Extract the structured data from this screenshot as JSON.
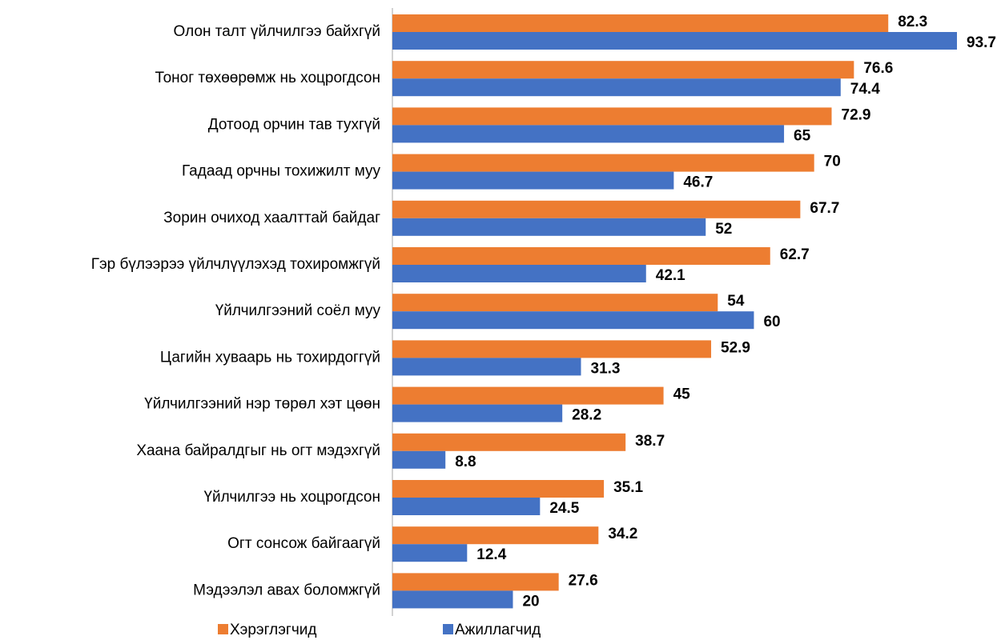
{
  "chart_data": {
    "type": "hbar",
    "categories": [
      "Олон талт үйлчилгээ байхгүй",
      "Тоног төхөөрөмж нь хоцрогдсон",
      "Дотоод орчин тав тухгүй",
      "Гадаад орчны тохижилт муу",
      "Зорин очиход хаалттай байдаг",
      "Гэр бүлээрээ үйлчлүүлэхэд тохиромжгүй",
      "Үйлчилгээний соёл муу",
      "Цагийн хуваарь нь тохирдоггүй",
      "Үйлчилгээний нэр төрөл хэт цөөн",
      "Хаана байралдгыг нь огт мэдэхгүй",
      "Үйлчилгээ нь хоцрогдсон",
      "Огт сонсож байгаагүй",
      "Мэдээлэл авах боломжгүй"
    ],
    "series": [
      {
        "name": "Хэрэглэгчид",
        "color": "#ED7D31",
        "values": [
          82.3,
          76.6,
          72.9,
          70,
          67.7,
          62.7,
          54,
          52.9,
          45,
          38.7,
          35.1,
          34.2,
          27.6
        ]
      },
      {
        "name": "Ажиллагчид",
        "color": "#4472C4",
        "values": [
          93.7,
          74.4,
          65,
          46.7,
          52,
          42.1,
          60,
          31.3,
          28.2,
          8.8,
          24.5,
          12.4,
          20
        ]
      }
    ]
  }
}
